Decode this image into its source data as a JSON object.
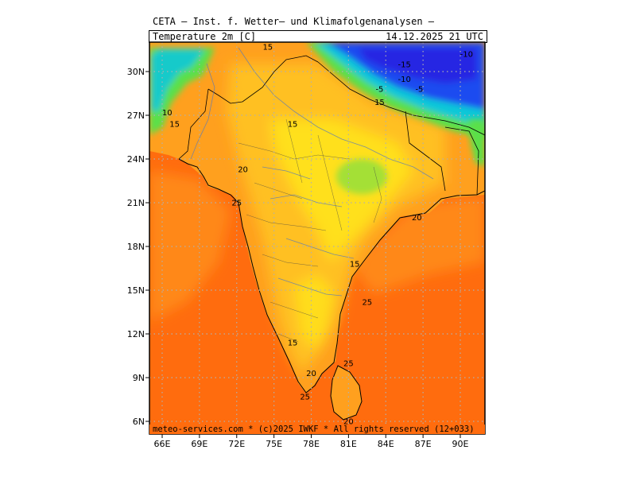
{
  "header": {
    "title": "CETA — Inst. f. Wetter— und Klimafolgenanalysen —",
    "variable": "Temperature 2m [C]",
    "valid_time": "14.12.2025 21 UTC"
  },
  "footer": {
    "credit": "meteo-services.com * (c)2025 IWKF * All rights reserved (12+033)"
  },
  "axes": {
    "lat_labels": [
      "30N",
      "27N",
      "24N",
      "21N",
      "18N",
      "15N",
      "12N",
      "9N",
      "6N"
    ],
    "lat_values": [
      30,
      27,
      24,
      21,
      18,
      15,
      12,
      9,
      6
    ],
    "lon_labels": [
      "66E",
      "69E",
      "72E",
      "75E",
      "78E",
      "81E",
      "84E",
      "87E",
      "90E"
    ],
    "lon_values": [
      66,
      69,
      72,
      75,
      78,
      81,
      84,
      87,
      90
    ]
  },
  "colors": {
    "ocean_warm": "#ff6c0e",
    "land_mild": "#ffa01e",
    "land_cool": "#ffc020",
    "center_yellow": "#ffe31c",
    "green": "#5ae04a",
    "cyan": "#10c8d8",
    "blue": "#1a4cf0",
    "deep_blue": "#2a1ee0"
  },
  "contour_labels": [
    {
      "text": "15",
      "lon": 74.5,
      "lat": 31.5
    },
    {
      "text": "10",
      "lon": 66.4,
      "lat": 27.0
    },
    {
      "text": "15",
      "lon": 67.0,
      "lat": 26.2
    },
    {
      "text": "15",
      "lon": 76.5,
      "lat": 26.2
    },
    {
      "text": "20",
      "lon": 72.5,
      "lat": 23.1
    },
    {
      "text": "25",
      "lon": 72.0,
      "lat": 20.8
    },
    {
      "text": "20",
      "lon": 86.5,
      "lat": 19.8
    },
    {
      "text": "15",
      "lon": 81.5,
      "lat": 16.6
    },
    {
      "text": "25",
      "lon": 82.5,
      "lat": 14.0
    },
    {
      "text": "15",
      "lon": 76.5,
      "lat": 11.2
    },
    {
      "text": "20",
      "lon": 78.0,
      "lat": 9.1
    },
    {
      "text": "25",
      "lon": 81.0,
      "lat": 9.8
    },
    {
      "text": "25",
      "lon": 77.5,
      "lat": 7.5
    },
    {
      "text": "20",
      "lon": 81.0,
      "lat": 5.8
    },
    {
      "text": "-10",
      "lon": 90.5,
      "lat": 31.0
    },
    {
      "text": "-15",
      "lon": 85.5,
      "lat": 30.3
    },
    {
      "text": "-10",
      "lon": 85.5,
      "lat": 29.3
    },
    {
      "text": "-5",
      "lon": 83.5,
      "lat": 28.6
    },
    {
      "text": "-5",
      "lon": 86.7,
      "lat": 28.6
    },
    {
      "text": "15",
      "lon": 83.5,
      "lat": 27.7
    }
  ]
}
